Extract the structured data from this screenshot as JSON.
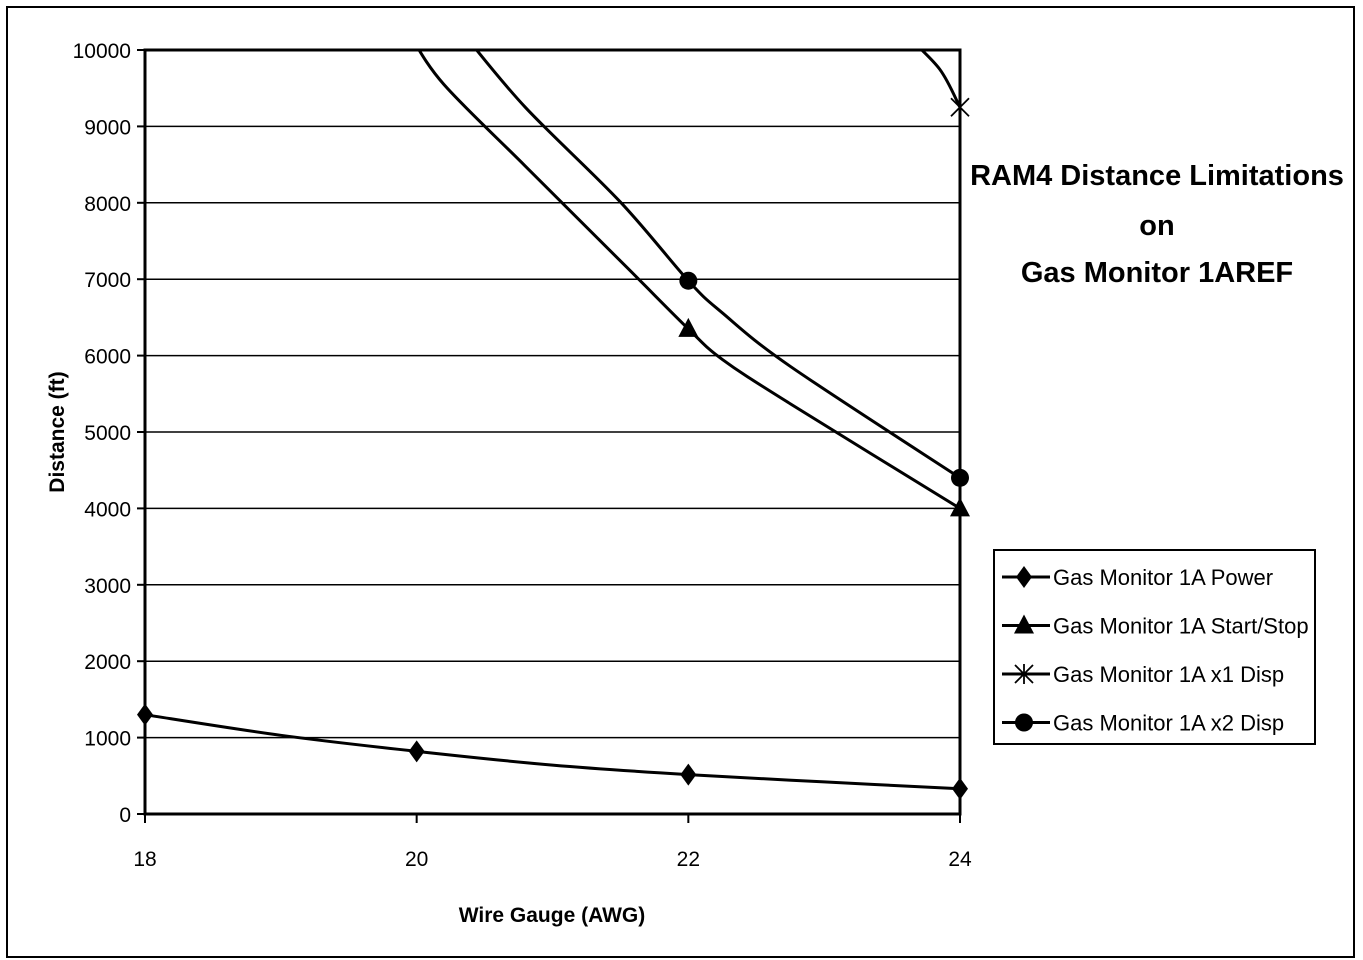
{
  "chart_data": {
    "type": "line",
    "title_lines": [
      "RAM4 Distance Limitations",
      "on",
      "Gas Monitor 1AREF"
    ],
    "xlabel": "Wire Gauge (AWG)",
    "ylabel": "Distance (ft)",
    "xlim": [
      18,
      24
    ],
    "ylim": [
      0,
      10000
    ],
    "x_ticks": [
      "18",
      "20",
      "22",
      "24"
    ],
    "y_ticks": [
      "0",
      "1000",
      "2000",
      "3000",
      "4000",
      "5000",
      "6000",
      "7000",
      "8000",
      "9000",
      "10000"
    ],
    "grid": "horizontal",
    "legend_position": "right",
    "x": [
      18,
      20,
      22,
      24
    ],
    "series": [
      {
        "name": "Gas Monitor 1A Power",
        "marker": "diamond",
        "marker_x": [
          18,
          20,
          22,
          24
        ],
        "marker_y": [
          1300,
          820,
          515,
          330
        ],
        "curve": [
          [
            18,
            1300
          ],
          [
            19,
            1030
          ],
          [
            20,
            820
          ],
          [
            21,
            640
          ],
          [
            22,
            515
          ],
          [
            23,
            420
          ],
          [
            24,
            330
          ]
        ]
      },
      {
        "name": "Gas Monitor 1A Start/Stop",
        "marker": "triangle",
        "marker_x": [
          22,
          24
        ],
        "marker_y": [
          6350,
          4000
        ],
        "curve": [
          [
            19.95,
            10200
          ],
          [
            20.2,
            9550
          ],
          [
            20.8,
            8480
          ],
          [
            21.55,
            7150
          ],
          [
            22,
            6350
          ],
          [
            22.25,
            5950
          ],
          [
            22.75,
            5370
          ],
          [
            24,
            4000
          ]
        ]
      },
      {
        "name": "Gas Monitor 1A x1 Disp",
        "marker": "asterisk",
        "marker_x": [
          24
        ],
        "marker_y": [
          9250
        ],
        "curve": [
          [
            23.6,
            10200
          ],
          [
            23.85,
            9750
          ],
          [
            24,
            9250
          ]
        ]
      },
      {
        "name": "Gas Monitor 1A x2 Disp",
        "marker": "circle",
        "marker_x": [
          22,
          24
        ],
        "marker_y": [
          6980,
          4400
        ],
        "curve": [
          [
            20.35,
            10200
          ],
          [
            20.8,
            9250
          ],
          [
            21.5,
            8010
          ],
          [
            22,
            6980
          ],
          [
            22.25,
            6560
          ],
          [
            22.75,
            5860
          ],
          [
            24,
            4400
          ]
        ]
      }
    ]
  }
}
